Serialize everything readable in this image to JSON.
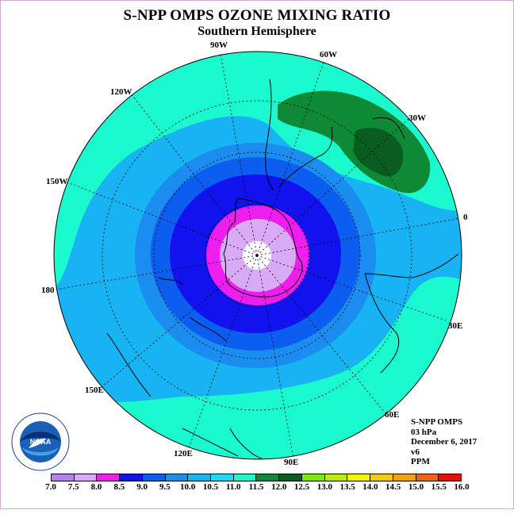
{
  "title": "S-NPP OMPS OZONE MIXING RATIO",
  "subtitle": "Southern Hemisphere",
  "meridian_labels": {
    "w90": "90W",
    "w60": "60W",
    "w30": "30W",
    "w120": "120W",
    "w150": "150W",
    "e0": "0",
    "d180": "180",
    "e30": "30E",
    "e150": "150E",
    "e60": "60E",
    "e120": "120E",
    "e90": "90E"
  },
  "info": {
    "instrument": "S-NPP OMPS",
    "level": "03 hPa",
    "date": "December 6, 2017",
    "version": "v6",
    "units": "PPM"
  },
  "logo": {
    "text": "NOAA",
    "icon": "noaa-logo-icon"
  },
  "colorbar": {
    "ticks": [
      "7.0",
      "7.5",
      "8.0",
      "8.5",
      "9.0",
      "9.5",
      "10.0",
      "10.5",
      "11.0",
      "11.5",
      "12.0",
      "12.5",
      "13.0",
      "13.5",
      "14.0",
      "14.5",
      "15.0",
      "15.5",
      "16.0"
    ],
    "colors": [
      "#b681f2",
      "#d9aaf5",
      "#ee1eee",
      "#1212ee",
      "#0c5ef0",
      "#1b8cf0",
      "#17b3f2",
      "#1edbf5",
      "#1bfacf",
      "#0e8a37",
      "#0b5c21",
      "#7fe80f",
      "#bbea0c",
      "#f5f50a",
      "#f5cc0b",
      "#f5a00a",
      "#f2620a",
      "#ef0a0a",
      "#8f5a3a"
    ]
  }
}
